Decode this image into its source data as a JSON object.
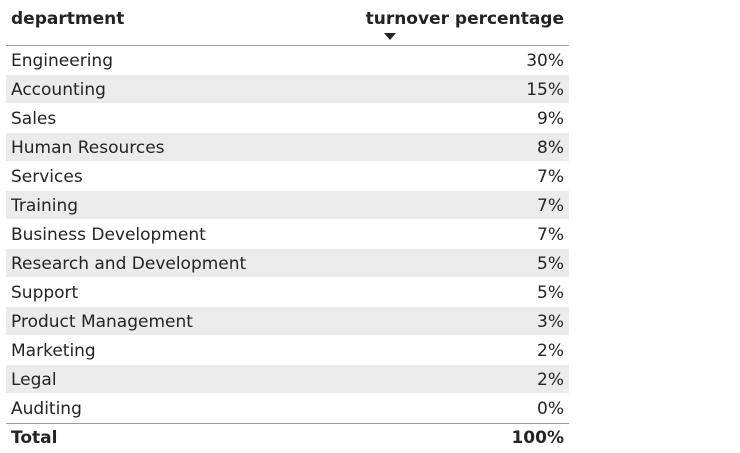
{
  "chart_data": {
    "type": "table",
    "columns": [
      "department",
      "turnover percentage"
    ],
    "sort": {
      "column": "turnover percentage",
      "direction": "descending"
    },
    "rows": [
      {
        "department": "Engineering",
        "turnover_percentage": "30%"
      },
      {
        "department": "Accounting",
        "turnover_percentage": "15%"
      },
      {
        "department": "Sales",
        "turnover_percentage": "9%"
      },
      {
        "department": "Human Resources",
        "turnover_percentage": "8%"
      },
      {
        "department": "Services",
        "turnover_percentage": "7%"
      },
      {
        "department": "Training",
        "turnover_percentage": "7%"
      },
      {
        "department": "Business Development",
        "turnover_percentage": "7%"
      },
      {
        "department": "Research and Development",
        "turnover_percentage": "5%"
      },
      {
        "department": "Support",
        "turnover_percentage": "5%"
      },
      {
        "department": "Product Management",
        "turnover_percentage": "3%"
      },
      {
        "department": "Marketing",
        "turnover_percentage": "2%"
      },
      {
        "department": "Legal",
        "turnover_percentage": "2%"
      },
      {
        "department": "Auditing",
        "turnover_percentage": "0%"
      }
    ],
    "total": {
      "label": "Total",
      "turnover_percentage": "100%"
    }
  },
  "colors": {
    "header_rule": "#5fb3c9",
    "alt_row": "#ebebeb",
    "text": "#252423"
  },
  "icons": {
    "sort": "sort-descending-icon"
  }
}
